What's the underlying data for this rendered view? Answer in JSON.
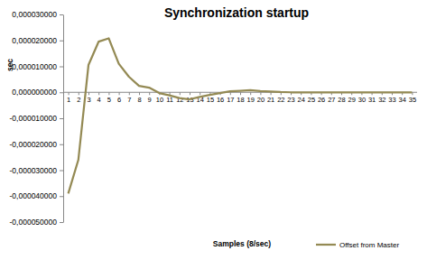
{
  "chart_data": {
    "type": "line",
    "title": "Synchronization startup",
    "x_label": "Samples (8/sec)",
    "y_label": "sec",
    "categories": [
      "1",
      "2",
      "3",
      "4",
      "5",
      "6",
      "7",
      "8",
      "9",
      "10",
      "11",
      "12",
      "13",
      "14",
      "15",
      "16",
      "17",
      "18",
      "19",
      "20",
      "21",
      "22",
      "23",
      "24",
      "25",
      "26",
      "27",
      "28",
      "29",
      "30",
      "31",
      "32",
      "33",
      "34",
      "35"
    ],
    "series": [
      {
        "name": "Offset from Master",
        "color": "#948a54",
        "values": [
          -3.9e-05,
          -2.6e-05,
          1.05e-05,
          1.95e-05,
          2.08e-05,
          1.1e-05,
          6e-06,
          2.5e-06,
          1.8e-06,
          -3e-07,
          -1.2e-06,
          -2.2e-06,
          -2.7e-06,
          -1.8e-06,
          -1e-06,
          -3e-07,
          4e-07,
          6e-07,
          8e-07,
          5e-07,
          3e-07,
          1e-07,
          0,
          0,
          0,
          0,
          0,
          0,
          0,
          0,
          0,
          0,
          0,
          0,
          0
        ]
      }
    ],
    "ylim": [
      -5e-05,
      3e-05
    ],
    "yticks": [
      {
        "value": -5e-05,
        "label": "-0,000050000"
      },
      {
        "value": -4e-05,
        "label": "-0,000040000"
      },
      {
        "value": -3e-05,
        "label": "-0,000030000"
      },
      {
        "value": -2e-05,
        "label": "-0,000020000"
      },
      {
        "value": -1e-05,
        "label": "-0,000010000"
      },
      {
        "value": 0,
        "label": "0,000000000"
      },
      {
        "value": 1e-05,
        "label": "0,000010000"
      },
      {
        "value": 2e-05,
        "label": "0,000020000"
      },
      {
        "value": 3e-05,
        "label": "0,000030000"
      }
    ],
    "grid": false,
    "legend": "bottom-right"
  }
}
